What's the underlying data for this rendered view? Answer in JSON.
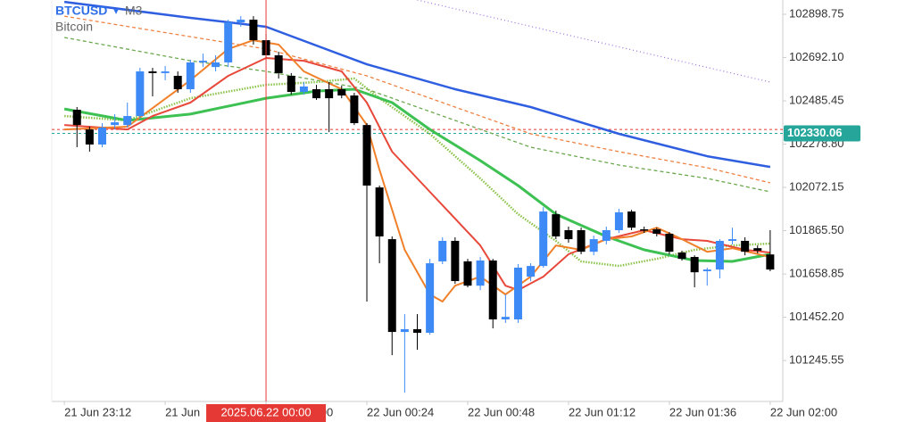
{
  "header": {
    "symbol": "BTCUSD",
    "arrow": "▾",
    "timeframe": "M3",
    "description": "Bitcoin"
  },
  "chart_data": {
    "type": "candlestick",
    "ylim": [
      101050,
      102967
    ],
    "yticks": [
      102898.75,
      {
        "value": 102692.1,
        "label": "102692.10"
      },
      102485.45,
      {
        "value": 102278.8,
        "label": "102278.80"
      },
      102072.15,
      {
        "value": 101865.5,
        "label": "101865.50"
      },
      101658.85,
      {
        "value": 101452.2,
        "label": "101452.20"
      },
      101245.55
    ],
    "xlim": [
      -2,
      56
    ],
    "xticks": [
      {
        "value": -1,
        "label": "21 Jun 23:12"
      },
      {
        "value": 7,
        "label": "21 Jun"
      },
      {
        "value": 15,
        "label": "22 Jun 00:00"
      },
      {
        "value": 23,
        "label": "22 Jun 00:24"
      },
      {
        "value": 31,
        "label": "22 Jun 00:48"
      },
      {
        "value": 39,
        "label": "22 Jun 01:12"
      },
      {
        "value": 47,
        "label": "22 Jun 01:36"
      },
      {
        "value": 55,
        "label": "22 Jun 02:00"
      }
    ],
    "up_color": "#3d8af7",
    "down_color": "#000000",
    "ohlc": [
      [
        102443,
        102456,
        102264,
        102370
      ],
      [
        102349,
        102362,
        102243,
        102277
      ],
      [
        102277,
        102379,
        102264,
        102358
      ],
      [
        102370,
        102422,
        102349,
        102383
      ],
      [
        102370,
        102477,
        102358,
        102413
      ],
      [
        102413,
        102643,
        102400,
        102626
      ],
      [
        102626,
        102643,
        102507,
        102618
      ],
      [
        102618,
        102652,
        102584,
        102626
      ],
      [
        102605,
        102626,
        102524,
        102541
      ],
      [
        102541,
        102682,
        102524,
        102669
      ],
      [
        102669,
        102711,
        102647,
        102677
      ],
      [
        102647,
        102703,
        102626,
        102669
      ],
      [
        102669,
        102873,
        102647,
        102860
      ],
      [
        102860,
        102890,
        102839,
        102873
      ],
      [
        102873,
        102890,
        102754,
        102775
      ],
      [
        102775,
        102805,
        102686,
        102703
      ],
      [
        102703,
        102720,
        102592,
        102618
      ],
      [
        102605,
        102618,
        102515,
        102528
      ],
      [
        102528,
        102575,
        102515,
        102554
      ],
      [
        102541,
        102562,
        102490,
        102498
      ],
      [
        102541,
        102575,
        102336,
        102498
      ],
      [
        102541,
        102558,
        102498,
        102511
      ],
      [
        102511,
        102524,
        102370,
        102379
      ],
      [
        102370,
        102379,
        101527,
        102081
      ],
      [
        102072,
        102081,
        101710,
        101838
      ],
      [
        101825,
        101838,
        101271,
        101382
      ],
      [
        101382,
        101467,
        101092,
        101395
      ],
      [
        101395,
        101467,
        101297,
        101378
      ],
      [
        101378,
        101731,
        101369,
        101710
      ],
      [
        101719,
        101834,
        101706,
        101817
      ],
      [
        101817,
        101834,
        101612,
        101625
      ],
      [
        101719,
        101731,
        101595,
        101603
      ],
      [
        101603,
        101740,
        101582,
        101723
      ],
      [
        101723,
        101731,
        101399,
        101442
      ],
      [
        101442,
        101561,
        101425,
        101454
      ],
      [
        101442,
        101706,
        101425,
        101689
      ],
      [
        101646,
        101710,
        101625,
        101697
      ],
      [
        101697,
        101978,
        101689,
        101957
      ],
      [
        101944,
        101961,
        101825,
        101838
      ],
      [
        101868,
        101885,
        101808,
        101825
      ],
      [
        101868,
        101880,
        101753,
        101765
      ],
      [
        101765,
        101842,
        101748,
        101825
      ],
      [
        101817,
        101885,
        101800,
        101868
      ],
      [
        101868,
        101970,
        101855,
        101953
      ],
      [
        101957,
        101965,
        101868,
        101880
      ],
      [
        101872,
        101885,
        101855,
        101868
      ],
      [
        101872,
        101880,
        101838,
        101851
      ],
      [
        101851,
        101859,
        101752,
        101765
      ],
      [
        101761,
        101770,
        101723,
        101731
      ],
      [
        101740,
        101748,
        101595,
        101667
      ],
      [
        101672,
        101689,
        101603,
        101680
      ],
      [
        101680,
        101825,
        101638,
        101817
      ],
      [
        101817,
        101880,
        101800,
        101825
      ],
      [
        101817,
        101834,
        101748,
        101765
      ],
      [
        101782,
        101795,
        101757,
        101770
      ],
      [
        101752,
        101868,
        101672,
        101680
      ]
    ],
    "lines": [
      {
        "color": "#2f5fe0",
        "width": 2.5,
        "dash": "",
        "x": [
          -1,
          9,
          15,
          23,
          30,
          36,
          43,
          50,
          55
        ],
        "values": [
          102958,
          102882,
          102839,
          102660,
          102541,
          102456,
          102328,
          102221,
          102170
        ]
      },
      {
        "color": "#9b6fe0",
        "width": 1.2,
        "dash": "1 3",
        "x": [
          27,
          55
        ],
        "values": [
          102967,
          102575
        ]
      },
      {
        "color": "#f08040",
        "width": 1.3,
        "dash": "4 3",
        "x": [
          -1,
          15,
          23,
          30,
          36,
          43,
          50,
          55
        ],
        "values": [
          102890,
          102733,
          102605,
          102456,
          102328,
          102243,
          102166,
          102094
        ]
      },
      {
        "color": "#6aa84f",
        "width": 1.3,
        "dash": "4 3",
        "x": [
          -1,
          9,
          15,
          23,
          30,
          36,
          43,
          50,
          55
        ],
        "values": [
          102788,
          102677,
          102626,
          102541,
          102392,
          102264,
          102179,
          102115,
          102051
        ]
      },
      {
        "color": "#8bc34a",
        "width": 2.5,
        "dash": "1.5 1.5",
        "x": [
          -1,
          4,
          9,
          15,
          19,
          22,
          24,
          28,
          32,
          35,
          38,
          40,
          43,
          46,
          49,
          52,
          55
        ],
        "values": [
          102413,
          102392,
          102498,
          102562,
          102575,
          102592,
          102498,
          102328,
          102115,
          101944,
          101817,
          101719,
          101697,
          101731,
          101774,
          101795,
          101804
        ]
      },
      {
        "color": "#3cc152",
        "width": 3,
        "dash": "",
        "x": [
          -1,
          4,
          9,
          15,
          19,
          22,
          25,
          28,
          32,
          35,
          38,
          42,
          45,
          49,
          52,
          55
        ],
        "values": [
          102447,
          102392,
          102422,
          102498,
          102532,
          102541,
          102477,
          102349,
          102200,
          102081,
          101944,
          101838,
          101774,
          101723,
          101719,
          101753
        ]
      },
      {
        "color": "#e8483a",
        "width": 2,
        "dash": "",
        "x": [
          -1,
          4,
          6,
          9,
          12,
          15,
          18,
          21,
          23,
          25,
          28,
          30,
          32,
          34,
          35,
          37,
          39,
          42,
          45,
          48,
          50,
          53,
          55
        ],
        "values": [
          102370,
          102349,
          102413,
          102477,
          102605,
          102690,
          102677,
          102626,
          102477,
          102243,
          102051,
          101923,
          101795,
          101603,
          101582,
          101646,
          101753,
          101825,
          101868,
          101825,
          101817,
          101774,
          101761
        ]
      },
      {
        "color": "#f0802a",
        "width": 2,
        "dash": "",
        "x": [
          -1,
          4,
          9,
          12,
          14,
          16,
          18,
          21,
          23,
          24,
          26,
          28,
          29,
          30,
          32,
          34,
          36,
          38,
          40,
          42,
          44,
          46,
          48,
          50,
          52,
          55
        ],
        "values": [
          102349,
          102362,
          102584,
          102733,
          102775,
          102754,
          102626,
          102541,
          102370,
          102157,
          101774,
          101561,
          101527,
          101603,
          101646,
          101561,
          101646,
          101795,
          101774,
          101825,
          101838,
          101880,
          101825,
          101765,
          101782,
          101740
        ]
      }
    ],
    "price_lines": [
      {
        "value": 102349,
        "color": "#e53935"
      },
      {
        "value": 102330.06,
        "color": "#26a69a"
      }
    ],
    "crosshair": {
      "index": 15,
      "label": "2025.06.22 00:00",
      "color": "#e53935"
    }
  }
}
